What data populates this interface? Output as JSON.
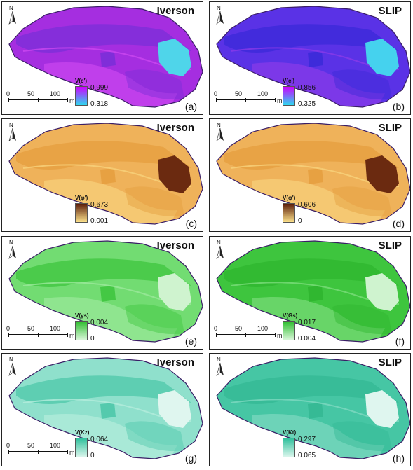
{
  "panels": [
    {
      "letter": "(a)",
      "model": "Iverson",
      "legend_title": "V(c')",
      "legend_max": "0.999",
      "legend_min": "0.318",
      "scale_bar": true,
      "colors": {
        "base": "#a52ee0",
        "dark": "#7b2fd8",
        "light": "#cc47f0",
        "patch": "#4fd5ea",
        "top": "#cc00ff",
        "bottom": "#2fd8f0"
      }
    },
    {
      "letter": "(b)",
      "model": "SLIP",
      "legend_title": "V(c')",
      "legend_max": "0.856",
      "legend_min": "0.325",
      "scale_bar": true,
      "colors": {
        "base": "#5a32e6",
        "dark": "#3b2ad8",
        "light": "#8a3ae8",
        "patch": "#45d2ee",
        "top": "#cc00ff",
        "bottom": "#2fd8f0"
      }
    },
    {
      "letter": "(c)",
      "model": "Iverson",
      "legend_title": "V(φ')",
      "legend_max": "0.673",
      "legend_min": "0.001",
      "scale_bar": false,
      "colors": {
        "base": "#efb25a",
        "dark": "#e59e3f",
        "light": "#f8d27c",
        "patch": "#6b2a10",
        "top": "#5c1e0a",
        "bottom": "#fbe08a"
      }
    },
    {
      "letter": "(d)",
      "model": "SLIP",
      "legend_title": "V(φ')",
      "legend_max": "0.606",
      "legend_min": "0",
      "scale_bar": false,
      "colors": {
        "base": "#efb25a",
        "dark": "#e59e3f",
        "light": "#f8d27c",
        "patch": "#6b2a10",
        "top": "#5c1e0a",
        "bottom": "#fbe08a"
      }
    },
    {
      "letter": "(e)",
      "model": "Iverson",
      "legend_title": "V(γs)",
      "legend_max": "0.004",
      "legend_min": "0",
      "scale_bar": true,
      "colors": {
        "base": "#72dc72",
        "dark": "#3fc53f",
        "light": "#9be89b",
        "patch": "#cff3cf",
        "top": "#2fbf2f",
        "bottom": "#d8f5d8"
      }
    },
    {
      "letter": "(f)",
      "model": "SLIP",
      "legend_title": "V(Gs)",
      "legend_max": "0.017",
      "legend_min": "0.004",
      "scale_bar": true,
      "colors": {
        "base": "#3ec53e",
        "dark": "#2fb52f",
        "light": "#7bdc7b",
        "patch": "#cff3cf",
        "top": "#2fbf2f",
        "bottom": "#d8f5d8"
      }
    },
    {
      "letter": "(g)",
      "model": "Iverson",
      "legend_title": "V(Kz)",
      "legend_max": "0.064",
      "legend_min": "0",
      "scale_bar": true,
      "colors": {
        "base": "#8fe0cc",
        "dark": "#4ec8aa",
        "light": "#b4ecdc",
        "patch": "#dff6ef",
        "top": "#30c09c",
        "bottom": "#d9f5ec"
      }
    },
    {
      "letter": "(h)",
      "model": "SLIP",
      "legend_title": "V(Kt)",
      "legend_max": "0.297",
      "legend_min": "0.065",
      "scale_bar": false,
      "colors": {
        "base": "#46c6a4",
        "dark": "#34b894",
        "light": "#7ed8c0",
        "patch": "#dff6ef",
        "top": "#30c09c",
        "bottom": "#d9f5ec"
      }
    }
  ],
  "scale": {
    "labels": [
      "0",
      "50",
      "100"
    ],
    "unit": "m"
  },
  "north_label": "N"
}
